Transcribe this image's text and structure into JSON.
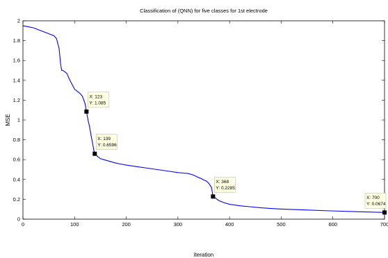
{
  "chart_data": {
    "type": "line",
    "title": "Classification of (QNN) for five classes for 1st electrode",
    "xlabel": "iteration",
    "ylabel": "MSE",
    "xlim": [
      0,
      700
    ],
    "ylim": [
      0,
      2
    ],
    "x_ticks": [
      "0",
      "100",
      "200",
      "300",
      "400",
      "500",
      "600",
      "700"
    ],
    "y_ticks": [
      "0",
      "0.2",
      "0.4",
      "0.6",
      "0.8",
      "1",
      "1.2",
      "1.4",
      "1.6",
      "1.8",
      "2"
    ],
    "grid": false,
    "series_color": "#0000ff",
    "series": [
      {
        "x": [
          0,
          10,
          20,
          30,
          40,
          50,
          60,
          65,
          70,
          73,
          75,
          77,
          80,
          85,
          90,
          95,
          100,
          105,
          110,
          115,
          120,
          123,
          126,
          129,
          132,
          135,
          137,
          139,
          145,
          150,
          160,
          170,
          180,
          190,
          200,
          220,
          240,
          260,
          280,
          300,
          310,
          320,
          330,
          340,
          345,
          350,
          355,
          360,
          365,
          367,
          368,
          372,
          376,
          380,
          390,
          400,
          420,
          440,
          460,
          480,
          500,
          550,
          600,
          650,
          700
        ],
        "y": [
          1.95,
          1.94,
          1.93,
          1.91,
          1.89,
          1.87,
          1.85,
          1.82,
          1.72,
          1.56,
          1.5,
          1.5,
          1.49,
          1.47,
          1.41,
          1.36,
          1.31,
          1.29,
          1.27,
          1.24,
          1.17,
          1.085,
          1.0,
          0.93,
          0.84,
          0.76,
          0.7,
          0.6596,
          0.63,
          0.61,
          0.595,
          0.58,
          0.565,
          0.555,
          0.545,
          0.53,
          0.515,
          0.5,
          0.485,
          0.47,
          0.465,
          0.46,
          0.445,
          0.42,
          0.41,
          0.395,
          0.385,
          0.36,
          0.32,
          0.26,
          0.2285,
          0.215,
          0.2,
          0.185,
          0.165,
          0.15,
          0.135,
          0.125,
          0.115,
          0.108,
          0.102,
          0.092,
          0.083,
          0.075,
          0.0674
        ]
      }
    ],
    "datatips": [
      {
        "x": 123,
        "y": 1.085,
        "x_text": "X: 123",
        "y_text": "Y: 1.085"
      },
      {
        "x": 139,
        "y": 0.6596,
        "x_text": "X: 139",
        "y_text": "Y: 0.6596"
      },
      {
        "x": 368,
        "y": 0.2285,
        "x_text": "X: 368",
        "y_text": "Y: 0.2285"
      },
      {
        "x": 700,
        "y": 0.0674,
        "x_text": "X: 700",
        "y_text": "Y: 0.0674"
      }
    ]
  }
}
